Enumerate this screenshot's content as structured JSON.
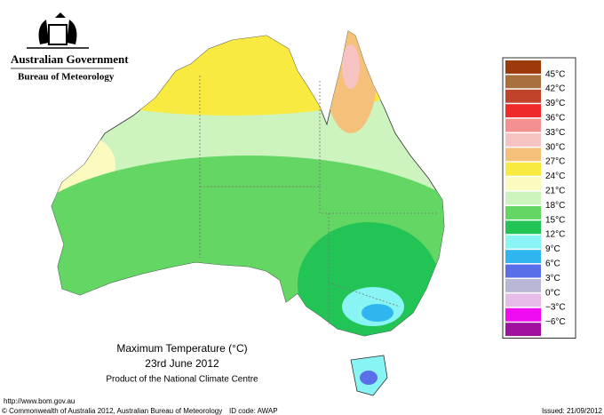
{
  "header": {
    "title": "Australian Government",
    "subtitle": "Bureau of Meteorology"
  },
  "legend": {
    "labels": [
      "45°C",
      "42°C",
      "39°C",
      "36°C",
      "33°C",
      "30°C",
      "27°C",
      "24°C",
      "21°C",
      "18°C",
      "15°C",
      "12°C",
      "9°C",
      "6°C",
      "3°C",
      "0°C",
      "−3°C",
      "−6°C"
    ],
    "colors": [
      "#9c3a0c",
      "#a8703c",
      "#c0432a",
      "#ee2a2a",
      "#f49090",
      "#f7c2c2",
      "#f5c079",
      "#f8ea40",
      "#fbfbc0",
      "#cdf3bf",
      "#63d663",
      "#22c455",
      "#88f4f4",
      "#2fb6ee",
      "#5a6ee8",
      "#b8b8d6",
      "#e8bce8",
      "#f00cf0",
      "#a0109e"
    ]
  },
  "caption": {
    "title": "Maximum Temperature (°C)",
    "date": "23rd June 2012",
    "credit": "Product of the National Climate Centre"
  },
  "footer": {
    "url": "http://www.bom.gov.au",
    "copyright": "© Commonwealth of Australia 2012, Australian Bureau of Meteorology",
    "id": "ID code: AWAP",
    "issued": "Issued: 21/09/2012"
  }
}
